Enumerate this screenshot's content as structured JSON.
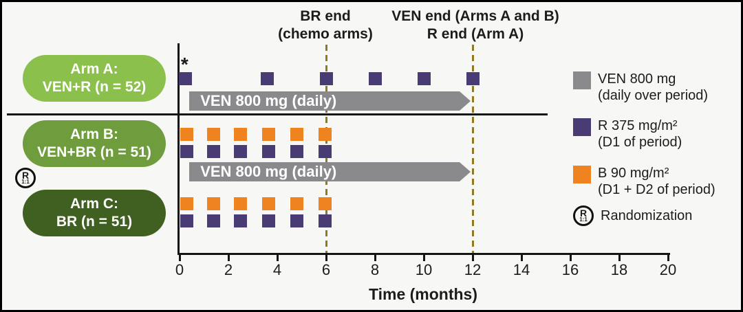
{
  "header": {
    "br_end_line1": "BR end",
    "br_end_line2": "(chemo arms)",
    "ven_end_line1": "VEN end (Arms A and B)",
    "ven_end_line2": "R end (Arm A)"
  },
  "arms": [
    {
      "name": "Arm A:",
      "detail": "VEN+R (n = 52)",
      "color": "#8cc04c",
      "asterisk": "*",
      "r_dose_months": [
        0.25,
        3.6,
        6.0,
        8.0,
        10.0,
        12.0
      ],
      "b_dose_months": [],
      "ven_bar": {
        "label": "VEN 800 mg (daily)",
        "start_month": 0.4,
        "end_month": 11.46
      }
    },
    {
      "name": "Arm B:",
      "detail": "VEN+BR (n = 51)",
      "color": "#6f9d3d",
      "asterisk": "",
      "r_dose_months": [
        0.3,
        1.4,
        2.5,
        3.65,
        4.8,
        5.97
      ],
      "b_dose_months": [
        0.3,
        1.4,
        2.5,
        3.65,
        4.8,
        5.97
      ],
      "ven_bar": {
        "label": "VEN 800 mg (daily)",
        "start_month": 0.4,
        "end_month": 11.46
      }
    },
    {
      "name": "Arm C:",
      "detail": "BR (n = 51)",
      "color": "#3f6021",
      "asterisk": "",
      "r_dose_months": [
        0.3,
        1.4,
        2.5,
        3.65,
        4.8,
        5.97
      ],
      "b_dose_months": [
        0.3,
        1.4,
        2.5,
        3.65,
        4.8,
        5.97
      ],
      "ven_bar": null
    }
  ],
  "events": [
    {
      "month": 6
    },
    {
      "month": 12
    }
  ],
  "axis": {
    "tick_values": [
      0,
      2,
      4,
      6,
      8,
      10,
      12,
      14,
      16,
      18,
      20
    ],
    "min": 0,
    "max": 20,
    "label": "Time (months)"
  },
  "legend": {
    "items": [
      {
        "line1": "VEN 800 mg",
        "line2": "(daily over period)"
      },
      {
        "line1": "R 375 mg/m²",
        "line2": "(D1 of period)"
      },
      {
        "line1": "B 90 mg/m²",
        "line2": "(D1 + D2 of period)"
      },
      {
        "line1": "Randomization",
        "line2": ""
      }
    ]
  },
  "randomization": {
    "symbol": "R",
    "ratio": "1:1"
  },
  "colors": {
    "ven_gray": "#8a8a8d",
    "r_purple": "#493b73",
    "b_orange": "#ee8320",
    "dashed_line": "#8f7b1e",
    "axis_black": "#151515"
  }
}
